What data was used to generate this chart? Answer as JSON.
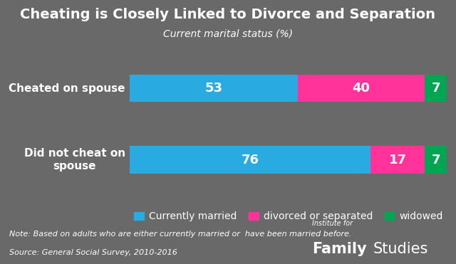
{
  "title": "Cheating is Closely Linked to Divorce and Separation",
  "subtitle": "Current marital status (%)",
  "categories": [
    "Cheated on spouse",
    "Did not cheat on\nspouse"
  ],
  "segments": {
    "married": [
      53,
      76
    ],
    "divorced": [
      40,
      17
    ],
    "widowed": [
      7,
      7
    ]
  },
  "colors": {
    "married": "#29ABE2",
    "divorced": "#FF3399",
    "widowed": "#00A651"
  },
  "legend_labels": [
    "Currently married",
    "divorced or separated",
    "widowed"
  ],
  "note_line1": "Note: Based on adults who are either currently married or  have been married before.",
  "note_line2": "Source: General Social Survey, 2010-2016",
  "background_color": "#696969",
  "text_color": "#FFFFFF",
  "bar_height": 0.38,
  "title_fontsize": 14,
  "subtitle_fontsize": 10,
  "label_fontsize": 11,
  "bar_label_fontsize": 13,
  "legend_fontsize": 10,
  "note_fontsize": 8,
  "logo_small_fontsize": 7,
  "logo_large_fontsize": 15
}
